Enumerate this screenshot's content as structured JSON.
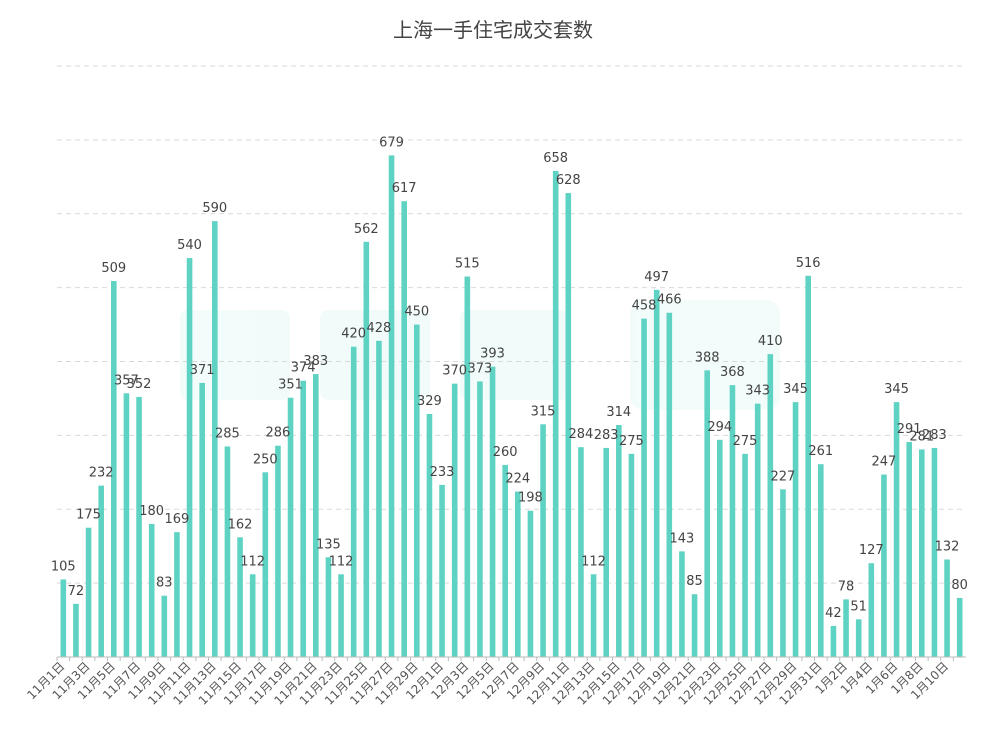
{
  "chart_data": {
    "type": "bar",
    "title": "上海一手住宅成交套数",
    "xlabel": "",
    "ylabel": "",
    "ylim": [
      0,
      800
    ],
    "grid": true,
    "bar_color": "#5fd3c3",
    "categories": [
      "11月1日",
      "11月2日",
      "11月3日",
      "11月4日",
      "11月5日",
      "11月6日",
      "11月7日",
      "11月8日",
      "11月9日",
      "11月10日",
      "11月11日",
      "11月12日",
      "11月13日",
      "11月14日",
      "11月15日",
      "11月16日",
      "11月17日",
      "11月18日",
      "11月19日",
      "11月20日",
      "11月21日",
      "11月22日",
      "11月23日",
      "11月24日",
      "11月25日",
      "11月26日",
      "11月27日",
      "11月28日",
      "11月29日",
      "11月30日",
      "12月1日",
      "12月2日",
      "12月3日",
      "12月4日",
      "12月5日",
      "12月6日",
      "12月7日",
      "12月8日",
      "12月9日",
      "12月10日",
      "12月11日",
      "12月12日",
      "12月13日",
      "12月14日",
      "12月15日",
      "12月16日",
      "12月17日",
      "12月18日",
      "12月19日",
      "12月20日",
      "12月21日",
      "12月22日",
      "12月23日",
      "12月24日",
      "12月25日",
      "12月26日",
      "12月27日",
      "12月28日",
      "12月29日",
      "12月30日",
      "12月31日",
      "1月1日",
      "1月2日",
      "1月3日",
      "1月4日",
      "1月5日",
      "1月6日",
      "1月7日",
      "1月8日",
      "1月9日",
      "1月10日",
      "1月11日"
    ],
    "shown_tick_labels": [
      "11月1日",
      "11月3日",
      "11月5日",
      "11月7日",
      "11月9日",
      "11月11日",
      "11月13日",
      "11月15日",
      "11月17日",
      "11月19日",
      "11月21日",
      "11月23日",
      "11月25日",
      "11月27日",
      "11月29日",
      "12月1日",
      "12月3日",
      "12月5日",
      "12月7日",
      "12月9日",
      "12月11日",
      "12月13日",
      "12月15日",
      "12月17日",
      "12月19日",
      "12月21日",
      "12月23日",
      "12月25日",
      "12月27日",
      "12月29日",
      "12月31日",
      "1月2日",
      "1月4日",
      "1月6日",
      "1月8日",
      "1月10日"
    ],
    "values": [
      105,
      72,
      175,
      232,
      509,
      357,
      352,
      180,
      83,
      169,
      540,
      371,
      590,
      285,
      162,
      112,
      250,
      286,
      351,
      374,
      383,
      135,
      112,
      420,
      562,
      428,
      679,
      617,
      450,
      329,
      233,
      370,
      515,
      373,
      393,
      260,
      224,
      198,
      315,
      658,
      628,
      284,
      112,
      283,
      314,
      275,
      458,
      497,
      466,
      143,
      85,
      388,
      294,
      368,
      275,
      343,
      410,
      227,
      345,
      516,
      261,
      42,
      78,
      51,
      127,
      247,
      345,
      291,
      281,
      283,
      132,
      80
    ]
  }
}
